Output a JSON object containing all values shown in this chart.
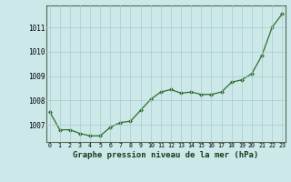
{
  "x": [
    0,
    1,
    2,
    3,
    4,
    5,
    6,
    7,
    8,
    9,
    10,
    11,
    12,
    13,
    14,
    15,
    16,
    17,
    18,
    19,
    20,
    21,
    22,
    23
  ],
  "y": [
    1007.55,
    1006.8,
    1006.8,
    1006.65,
    1006.55,
    1006.55,
    1006.9,
    1007.1,
    1007.15,
    1007.6,
    1008.05,
    1008.35,
    1008.45,
    1008.3,
    1008.35,
    1008.25,
    1008.25,
    1008.35,
    1008.75,
    1008.85,
    1009.1,
    1009.85,
    1011.0,
    1011.55
  ],
  "line_color": "#2d6e2d",
  "marker_color": "#2d6e2d",
  "bg_color": "#cce8e8",
  "grid_color": "#aacccc",
  "title": "Graphe pression niveau de la mer (hPa)",
  "xlabel_fontsize": 6.5,
  "ylim_min": 1006.3,
  "ylim_max": 1011.9,
  "xticks": [
    0,
    1,
    2,
    3,
    4,
    5,
    6,
    7,
    8,
    9,
    10,
    11,
    12,
    13,
    14,
    15,
    16,
    17,
    18,
    19,
    20,
    21,
    22,
    23
  ],
  "yticks": [
    1007,
    1008,
    1009,
    1010,
    1011
  ]
}
